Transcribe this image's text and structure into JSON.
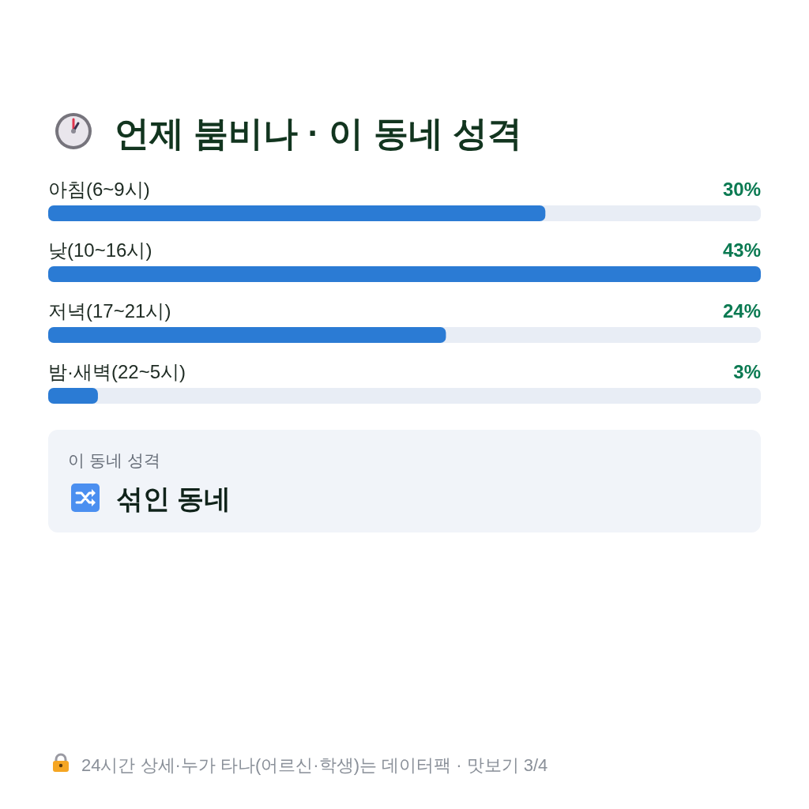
{
  "chart_data": [
    {
      "type": "bar",
      "orientation": "horizontal",
      "title": "언제 붐비나 · 이 동네 성격",
      "categories": [
        "아침(6~9시)",
        "낮(10~16시)",
        "저녁(17~21시)",
        "밤·새벽(22~5시)"
      ],
      "values": [
        30,
        43,
        24,
        3
      ],
      "value_labels": [
        "30%",
        "43%",
        "24%",
        "3%"
      ],
      "color": "#2b7bd4",
      "annotations": [
        "24시간 상세·누가 타나(어르신·학생)는 데이터팩 · 맛보기 3/4"
      ]
    },
    {
      "type": "other",
      "title": "이 동네 성격",
      "annotations": [
        "섞인 동네"
      ]
    }
  ]
}
